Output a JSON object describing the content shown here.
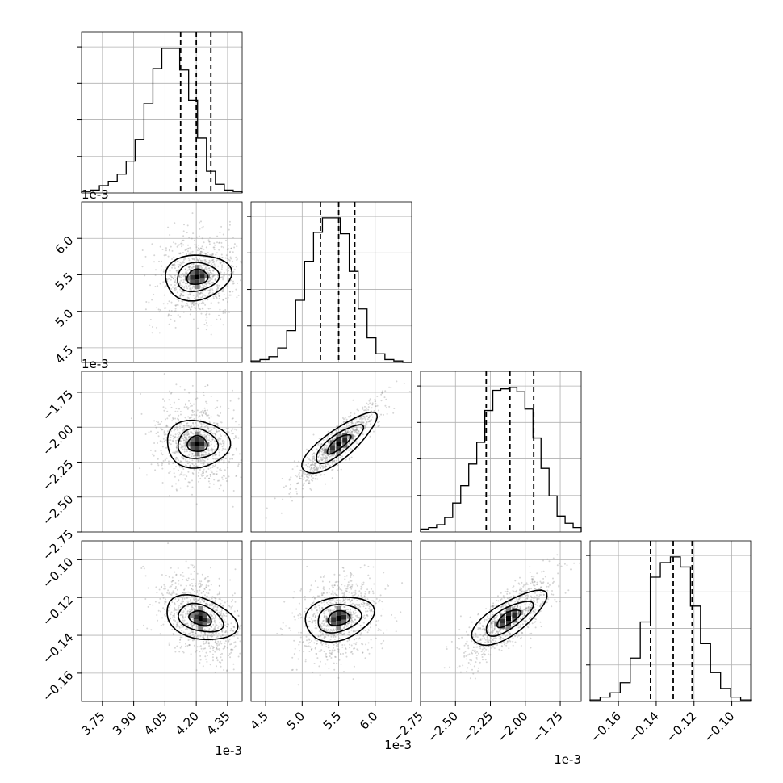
{
  "chart_data": {
    "type": "corner",
    "grid": true,
    "colors": {
      "line": "#000000",
      "grid": "#b0b0b0",
      "median": "#000000"
    },
    "offset_labels": {
      "row_1": "1e-3",
      "row_2": "1e-3",
      "col_0": "1e-3",
      "col_1": "1e-3",
      "col_2": "1e-3"
    },
    "parameters": [
      {
        "range": [
          3.65,
          4.42
        ],
        "ticks": [
          "3.75",
          "3.90",
          "4.05",
          "4.20",
          "4.35"
        ],
        "tick_values": [
          3.75,
          3.9,
          4.05,
          4.2,
          4.35
        ],
        "quantiles": [
          4.125,
          4.2,
          4.27
        ],
        "hist": [
          0.01,
          0.02,
          0.05,
          0.08,
          0.13,
          0.22,
          0.37,
          0.62,
          0.86,
          1.0,
          1.0,
          0.85,
          0.64,
          0.38,
          0.15,
          0.06,
          0.02,
          0.01
        ]
      },
      {
        "range": [
          4.3,
          6.5
        ],
        "ticks": [
          "4.5",
          "5.0",
          "5.5",
          "6.0"
        ],
        "tick_values": [
          4.5,
          5.0,
          5.5,
          6.0
        ],
        "quantiles": [
          5.25,
          5.5,
          5.72
        ],
        "hist": [
          0.01,
          0.02,
          0.04,
          0.1,
          0.22,
          0.43,
          0.7,
          0.9,
          1.0,
          1.0,
          0.89,
          0.63,
          0.37,
          0.17,
          0.06,
          0.02,
          0.01,
          0.0
        ]
      },
      {
        "range": [
          -2.75,
          -1.6
        ],
        "ticks": [
          "−2.75",
          "−2.50",
          "−2.25",
          "−2.00",
          "−1.75"
        ],
        "tick_values": [
          -2.75,
          -2.5,
          -2.25,
          -2.0,
          -1.75
        ],
        "quantiles": [
          -2.28,
          -2.11,
          -1.94
        ],
        "hist": [
          0.02,
          0.03,
          0.05,
          0.1,
          0.2,
          0.32,
          0.47,
          0.62,
          0.84,
          0.98,
          0.99,
          1.0,
          0.97,
          0.85,
          0.65,
          0.44,
          0.25,
          0.11,
          0.06,
          0.03
        ]
      },
      {
        "range": [
          -0.175,
          -0.09
        ],
        "ticks": [
          "−0.16",
          "−0.14",
          "−0.12",
          "−0.10"
        ],
        "tick_values": [
          -0.16,
          -0.14,
          -0.12,
          -0.1
        ],
        "quantiles": [
          -0.143,
          -0.131,
          -0.121
        ],
        "hist": [
          0.01,
          0.03,
          0.06,
          0.13,
          0.3,
          0.55,
          0.86,
          0.96,
          1.0,
          0.93,
          0.66,
          0.4,
          0.2,
          0.09,
          0.03,
          0.01
        ]
      }
    ],
    "pairs": [
      {
        "x": 0,
        "y": 1,
        "center": [
          4.205,
          5.47
        ],
        "corr": 0.15
      },
      {
        "x": 0,
        "y": 2,
        "center": [
          4.205,
          -2.12
        ],
        "corr": -0.05
      },
      {
        "x": 1,
        "y": 2,
        "center": [
          5.5,
          -2.12
        ],
        "corr": 0.9
      },
      {
        "x": 0,
        "y": 3,
        "center": [
          4.22,
          -0.131
        ],
        "corr": -0.35
      },
      {
        "x": 1,
        "y": 3,
        "center": [
          5.5,
          -0.131
        ],
        "corr": 0.25
      },
      {
        "x": 2,
        "y": 3,
        "center": [
          -2.12,
          -0.131
        ],
        "corr": 0.75
      }
    ]
  }
}
